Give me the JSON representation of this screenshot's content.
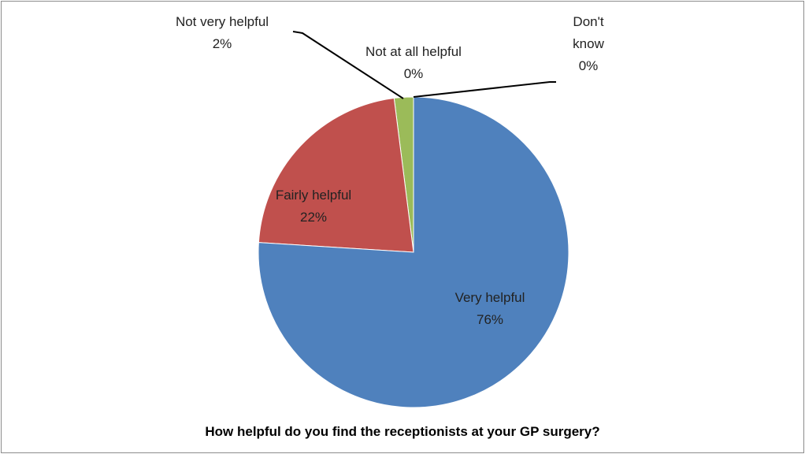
{
  "chart_data": {
    "type": "pie",
    "title": "How helpful do you find the receptionists at your GP surgery?",
    "categories": [
      "Very helpful",
      "Fairly helpful",
      "Not very helpful",
      "Not at all helpful",
      "Don't know"
    ],
    "values": [
      76,
      22,
      2,
      0,
      0
    ],
    "value_labels": [
      "76%",
      "22%",
      "2%",
      "0%",
      "0%"
    ],
    "colors": [
      "#4f81bd",
      "#c0504d",
      "#9bbb59",
      "#8064a2",
      "#4bacc6"
    ]
  }
}
